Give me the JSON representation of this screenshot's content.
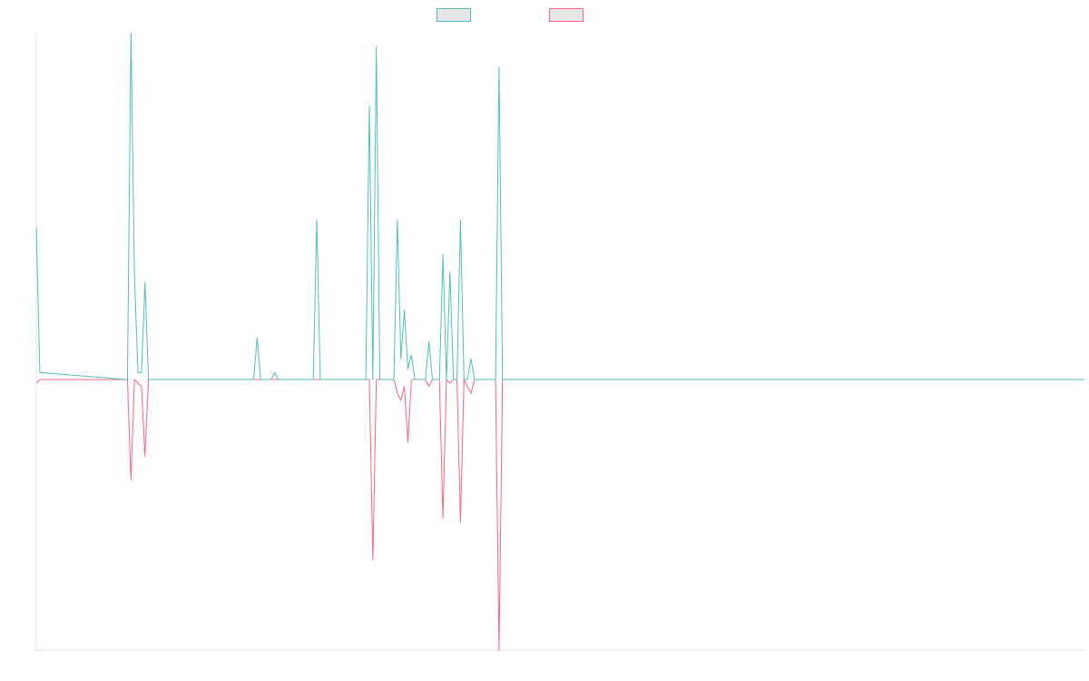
{
  "chart_data": {
    "type": "line",
    "title": "",
    "xlabel": "",
    "ylabel": "",
    "x_count": 300,
    "ylim": [
      -0.78,
      1.0
    ],
    "grid": false,
    "legend_position": "top-center",
    "colors": {
      "series_a": "#4bc0c0",
      "series_b": "#ff6384",
      "axis": "#e0e0e0"
    },
    "series": [
      {
        "name": "",
        "color": "#4bc0c0",
        "points": [
          [
            0,
            0.44
          ],
          [
            1,
            0.02
          ],
          [
            26,
            0
          ],
          [
            27,
            1.0
          ],
          [
            28,
            0.3
          ],
          [
            29,
            0.02
          ],
          [
            30,
            0.02
          ],
          [
            31,
            0.28
          ],
          [
            32,
            0
          ],
          [
            62,
            0
          ],
          [
            63,
            0.12
          ],
          [
            64,
            0
          ],
          [
            67,
            0
          ],
          [
            68,
            0.02
          ],
          [
            69,
            0
          ],
          [
            79,
            0
          ],
          [
            80,
            0.46
          ],
          [
            81,
            0
          ],
          [
            94,
            0
          ],
          [
            95,
            0.79
          ],
          [
            96,
            0
          ],
          [
            97,
            0.96
          ],
          [
            98,
            0
          ],
          [
            102,
            0
          ],
          [
            103,
            0.46
          ],
          [
            104,
            0.06
          ],
          [
            105,
            0.2
          ],
          [
            106,
            0.03
          ],
          [
            107,
            0.07
          ],
          [
            108,
            0
          ],
          [
            111,
            0
          ],
          [
            112,
            0.11
          ],
          [
            113,
            0
          ],
          [
            115,
            0
          ],
          [
            116,
            0.36
          ],
          [
            117,
            0
          ],
          [
            118,
            0.31
          ],
          [
            119,
            0
          ],
          [
            120,
            0
          ],
          [
            121,
            0.46
          ],
          [
            122,
            0
          ],
          [
            123,
            0
          ],
          [
            124,
            0.06
          ],
          [
            125,
            0
          ],
          [
            131,
            0
          ],
          [
            132,
            0.9
          ],
          [
            133,
            0
          ],
          [
            299,
            0
          ]
        ]
      },
      {
        "name": "",
        "color": "#ff6384",
        "points": [
          [
            0,
            -0.01
          ],
          [
            1,
            0
          ],
          [
            26,
            0
          ],
          [
            27,
            -0.29
          ],
          [
            28,
            0
          ],
          [
            29,
            -0.01
          ],
          [
            30,
            -0.02
          ],
          [
            31,
            -0.22
          ],
          [
            32,
            0
          ],
          [
            95,
            0
          ],
          [
            96,
            -0.52
          ],
          [
            97,
            0
          ],
          [
            102,
            0
          ],
          [
            103,
            -0.04
          ],
          [
            104,
            -0.06
          ],
          [
            105,
            -0.02
          ],
          [
            106,
            -0.18
          ],
          [
            107,
            0
          ],
          [
            111,
            0
          ],
          [
            112,
            -0.02
          ],
          [
            113,
            0
          ],
          [
            115,
            0
          ],
          [
            116,
            -0.4
          ],
          [
            117,
            0
          ],
          [
            118,
            -0.01
          ],
          [
            119,
            0
          ],
          [
            120,
            0
          ],
          [
            121,
            -0.41
          ],
          [
            122,
            0
          ],
          [
            124,
            -0.04
          ],
          [
            125,
            0
          ],
          [
            131,
            0
          ],
          [
            132,
            -0.78
          ],
          [
            133,
            0
          ],
          [
            299,
            0
          ]
        ]
      }
    ],
    "legend": [
      {
        "name": "",
        "color": "#4bc0c0"
      },
      {
        "name": "",
        "color": "#ff6384"
      }
    ]
  }
}
